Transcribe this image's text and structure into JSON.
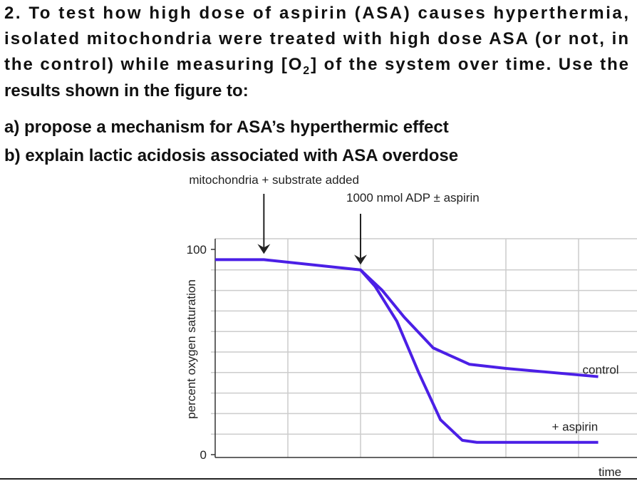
{
  "question": {
    "intro": [
      "2. To test how high dose of aspirin (ASA) causes hyperthermia,",
      "isolated mitochondria were treated with high dose ASA (or not, in",
      {
        "before": "the control) while measuring [O",
        "sub": "2",
        "after": "] of the system over time. Use the"
      },
      "results shown in the figure to:"
    ],
    "parts": [
      "a) propose a mechanism for ASA’s hyperthermic effect",
      "b) explain lactic acidosis associated with ASA overdose"
    ]
  },
  "chart_data": {
    "type": "line",
    "ylabel": "percent oxygen saturation",
    "xlabel": "time",
    "annotations": [
      {
        "text": "mitochondria + substrate added",
        "x": 0.67
      },
      {
        "text": "1000 nmol ADP ± aspirin",
        "x": 2
      }
    ],
    "xlim": [
      0,
      6
    ],
    "ylim": [
      0,
      100
    ],
    "yticks": [
      0,
      100
    ],
    "xgrid": [
      1,
      2,
      3,
      4,
      5
    ],
    "ygrid": [
      10,
      20,
      30,
      40,
      50,
      60,
      70,
      80,
      90
    ],
    "series": [
      {
        "name": "control",
        "color": "#4b1fe6",
        "x": [
          0,
          0.67,
          2,
          2.3,
          2.6,
          3,
          3.5,
          4,
          5.27
        ],
        "values": [
          95,
          95,
          90,
          80,
          67,
          52,
          44,
          42,
          38
        ]
      },
      {
        "name": "+ aspirin",
        "color": "#4b1fe6",
        "x": [
          2,
          2.2,
          2.5,
          2.8,
          3.1,
          3.4,
          3.6,
          5.27
        ],
        "values": [
          90,
          82,
          65,
          40,
          17,
          7,
          6,
          6
        ]
      }
    ]
  }
}
